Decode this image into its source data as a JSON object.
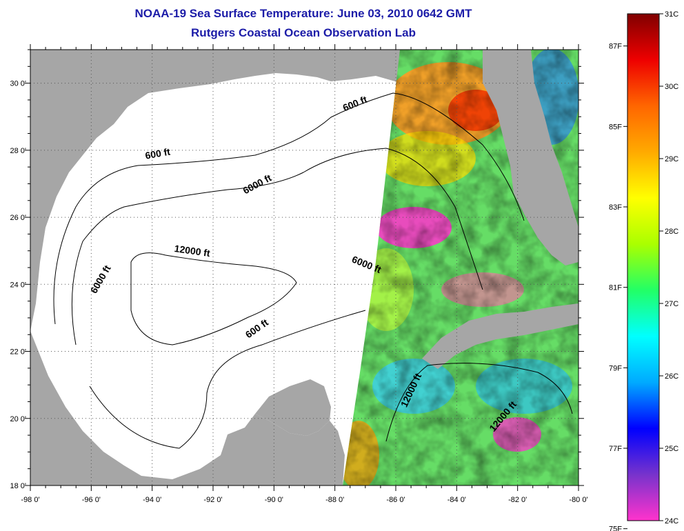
{
  "header": {
    "title": "NOAA-19 Sea Surface Temperature:  June 03, 2010 0642 GMT",
    "subtitle": "Rutgers Coastal Ocean Observation Lab"
  },
  "map": {
    "lon_range": [
      -98,
      -80
    ],
    "lat_range": [
      18,
      31
    ],
    "lon_ticks": [
      "-98 0'",
      "-96 0'",
      "-94 0'",
      "-92 0'",
      "-90 0'",
      "-88 0'",
      "-86 0'",
      "-84 0'",
      "-82 0'",
      "-80 0'"
    ],
    "lat_ticks": [
      "18 0'",
      "20 0'",
      "22 0'",
      "24 0'",
      "26 0'",
      "28 0'",
      "30 0'"
    ],
    "grid": "dotted",
    "colors": {
      "land": "#a6a6a6",
      "no_data": "#ffffff"
    },
    "contours": [
      {
        "label": "600 ft",
        "lon": -93.8,
        "lat": 27.8
      },
      {
        "label": "6000 ft",
        "lon": -90.5,
        "lat": 26.9
      },
      {
        "label": "600 ft",
        "lon": -87.3,
        "lat": 29.3
      },
      {
        "label": "12000 ft",
        "lon": -92.7,
        "lat": 24.9
      },
      {
        "label": "6000 ft",
        "lon": -95.6,
        "lat": 24.1
      },
      {
        "label": "6000 ft",
        "lon": -87.0,
        "lat": 24.5
      },
      {
        "label": "600 ft",
        "lon": -90.5,
        "lat": 22.6
      },
      {
        "label": "12000 ft",
        "lon": -85.4,
        "lat": 20.8
      },
      {
        "label": "12000 ft",
        "lon": -82.4,
        "lat": 20.0
      }
    ]
  },
  "colorbar": {
    "range_c": [
      24,
      31
    ],
    "celsius_labels": [
      "31C",
      "30C",
      "29C",
      "28C",
      "27C",
      "26C",
      "25C",
      "24C"
    ],
    "fahrenheit_labels": [
      "87F",
      "85F",
      "83F",
      "81F",
      "79F",
      "77F",
      "75F"
    ],
    "stops": [
      "#ff33cc",
      "#7733cc",
      "#0000ff",
      "#00aaff",
      "#00ffff",
      "#22ff66",
      "#aaff00",
      "#ffff00",
      "#ffaa00",
      "#ff6600",
      "#ee0000",
      "#800000"
    ]
  }
}
